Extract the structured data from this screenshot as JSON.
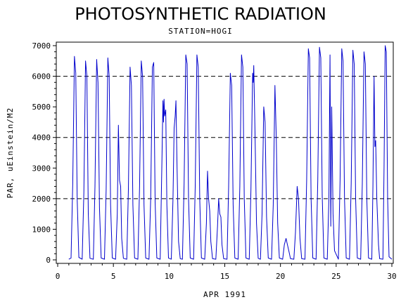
{
  "chart_data": {
    "type": "line",
    "title": "PHOTOSYNTHETIC RADIATION",
    "subtitle": "STATION=HOGI",
    "xlabel": "APR 1991",
    "ylabel": "PAR, uEinstein/M2",
    "xlim": [
      0,
      30
    ],
    "ylim": [
      0,
      7000
    ],
    "x_ticks": [
      0,
      5,
      10,
      15,
      20,
      25,
      30
    ],
    "y_ticks": [
      0,
      1000,
      2000,
      3000,
      4000,
      5000,
      6000,
      7000
    ],
    "reference_lines_y": [
      2000,
      4000,
      6000
    ],
    "line_color": "#0000cc",
    "series": [
      {
        "values": [
          [
            1.0,
            20
          ],
          [
            1.2,
            60
          ],
          [
            1.35,
            2500
          ],
          [
            1.5,
            6650
          ],
          [
            1.62,
            6100
          ],
          [
            1.75,
            2000
          ],
          [
            1.9,
            80
          ],
          [
            2.2,
            20
          ],
          [
            2.35,
            2200
          ],
          [
            2.5,
            6500
          ],
          [
            2.62,
            6000
          ],
          [
            2.75,
            1500
          ],
          [
            2.9,
            50
          ],
          [
            3.2,
            20
          ],
          [
            3.35,
            2400
          ],
          [
            3.5,
            6550
          ],
          [
            3.62,
            5800
          ],
          [
            3.75,
            1700
          ],
          [
            3.9,
            60
          ],
          [
            4.2,
            20
          ],
          [
            4.35,
            2300
          ],
          [
            4.5,
            6600
          ],
          [
            4.62,
            6000
          ],
          [
            4.75,
            1800
          ],
          [
            4.9,
            60
          ],
          [
            5.2,
            20
          ],
          [
            5.35,
            1500
          ],
          [
            5.45,
            4400
          ],
          [
            5.55,
            2600
          ],
          [
            5.65,
            2400
          ],
          [
            5.75,
            700
          ],
          [
            5.9,
            50
          ],
          [
            6.2,
            20
          ],
          [
            6.35,
            2300
          ],
          [
            6.5,
            6300
          ],
          [
            6.62,
            5700
          ],
          [
            6.75,
            1800
          ],
          [
            6.9,
            60
          ],
          [
            7.2,
            20
          ],
          [
            7.35,
            2400
          ],
          [
            7.5,
            6500
          ],
          [
            7.62,
            6000
          ],
          [
            7.75,
            1800
          ],
          [
            7.9,
            60
          ],
          [
            8.2,
            20
          ],
          [
            8.35,
            2000
          ],
          [
            8.5,
            6300
          ],
          [
            8.62,
            6450
          ],
          [
            8.75,
            1900
          ],
          [
            8.9,
            60
          ],
          [
            9.2,
            20
          ],
          [
            9.35,
            3000
          ],
          [
            9.45,
            5200
          ],
          [
            9.5,
            4500
          ],
          [
            9.55,
            5250
          ],
          [
            9.6,
            4700
          ],
          [
            9.7,
            4900
          ],
          [
            9.8,
            1800
          ],
          [
            9.95,
            60
          ],
          [
            10.2,
            20
          ],
          [
            10.35,
            2000
          ],
          [
            10.45,
            4300
          ],
          [
            10.55,
            4700
          ],
          [
            10.62,
            5200
          ],
          [
            10.72,
            3000
          ],
          [
            10.85,
            600
          ],
          [
            11.0,
            40
          ],
          [
            11.2,
            20
          ],
          [
            11.35,
            2500
          ],
          [
            11.5,
            6700
          ],
          [
            11.62,
            6400
          ],
          [
            11.75,
            2000
          ],
          [
            11.9,
            60
          ],
          [
            12.2,
            20
          ],
          [
            12.35,
            2400
          ],
          [
            12.5,
            6700
          ],
          [
            12.62,
            6300
          ],
          [
            12.75,
            2000
          ],
          [
            12.9,
            60
          ],
          [
            13.2,
            20
          ],
          [
            13.35,
            1200
          ],
          [
            13.45,
            2900
          ],
          [
            13.55,
            2000
          ],
          [
            13.65,
            1600
          ],
          [
            13.75,
            600
          ],
          [
            13.9,
            40
          ],
          [
            14.2,
            20
          ],
          [
            14.35,
            1100
          ],
          [
            14.45,
            2000
          ],
          [
            14.55,
            1500
          ],
          [
            14.65,
            1400
          ],
          [
            14.75,
            500
          ],
          [
            14.9,
            40
          ],
          [
            15.2,
            20
          ],
          [
            15.35,
            2400
          ],
          [
            15.5,
            6100
          ],
          [
            15.62,
            5700
          ],
          [
            15.75,
            1800
          ],
          [
            15.9,
            60
          ],
          [
            16.2,
            20
          ],
          [
            16.35,
            2400
          ],
          [
            16.5,
            6700
          ],
          [
            16.62,
            6300
          ],
          [
            16.75,
            2000
          ],
          [
            16.9,
            60
          ],
          [
            17.2,
            20
          ],
          [
            17.35,
            2300
          ],
          [
            17.5,
            6100
          ],
          [
            17.55,
            5800
          ],
          [
            17.6,
            6350
          ],
          [
            17.72,
            4000
          ],
          [
            17.85,
            1200
          ],
          [
            18.0,
            50
          ],
          [
            18.2,
            20
          ],
          [
            18.35,
            1500
          ],
          [
            18.5,
            5000
          ],
          [
            18.62,
            4500
          ],
          [
            18.75,
            1400
          ],
          [
            18.9,
            60
          ],
          [
            19.2,
            20
          ],
          [
            19.35,
            1800
          ],
          [
            19.5,
            5700
          ],
          [
            19.62,
            4000
          ],
          [
            19.75,
            1200
          ],
          [
            19.9,
            60
          ],
          [
            20.2,
            20
          ],
          [
            20.35,
            500
          ],
          [
            20.5,
            700
          ],
          [
            20.62,
            500
          ],
          [
            20.75,
            300
          ],
          [
            20.9,
            40
          ],
          [
            21.2,
            20
          ],
          [
            21.35,
            900
          ],
          [
            21.5,
            2400
          ],
          [
            21.62,
            2000
          ],
          [
            21.75,
            700
          ],
          [
            21.9,
            40
          ],
          [
            22.2,
            20
          ],
          [
            22.35,
            2600
          ],
          [
            22.5,
            6900
          ],
          [
            22.62,
            6600
          ],
          [
            22.75,
            2000
          ],
          [
            22.9,
            60
          ],
          [
            23.2,
            20
          ],
          [
            23.35,
            2600
          ],
          [
            23.5,
            6950
          ],
          [
            23.62,
            6600
          ],
          [
            23.75,
            2100
          ],
          [
            23.9,
            60
          ],
          [
            24.2,
            20
          ],
          [
            24.35,
            2000
          ],
          [
            24.45,
            6700
          ],
          [
            24.52,
            1100
          ],
          [
            24.6,
            5000
          ],
          [
            24.72,
            1500
          ],
          [
            24.85,
            300
          ],
          [
            25.2,
            20
          ],
          [
            25.35,
            2600
          ],
          [
            25.5,
            6900
          ],
          [
            25.62,
            6500
          ],
          [
            25.75,
            2000
          ],
          [
            25.9,
            60
          ],
          [
            26.2,
            20
          ],
          [
            26.35,
            2500
          ],
          [
            26.5,
            6850
          ],
          [
            26.62,
            6400
          ],
          [
            26.75,
            2000
          ],
          [
            26.9,
            60
          ],
          [
            27.2,
            20
          ],
          [
            27.35,
            2500
          ],
          [
            27.5,
            6800
          ],
          [
            27.62,
            6400
          ],
          [
            27.75,
            2000
          ],
          [
            27.9,
            60
          ],
          [
            28.2,
            20
          ],
          [
            28.3,
            2400
          ],
          [
            28.4,
            6000
          ],
          [
            28.48,
            3700
          ],
          [
            28.55,
            3900
          ],
          [
            28.65,
            2000
          ],
          [
            28.8,
            500
          ],
          [
            28.9,
            40
          ],
          [
            29.2,
            20
          ],
          [
            29.3,
            3000
          ],
          [
            29.4,
            7000
          ],
          [
            29.5,
            6800
          ],
          [
            29.62,
            2000
          ],
          [
            29.75,
            100
          ],
          [
            30.0,
            20
          ]
        ]
      }
    ]
  }
}
